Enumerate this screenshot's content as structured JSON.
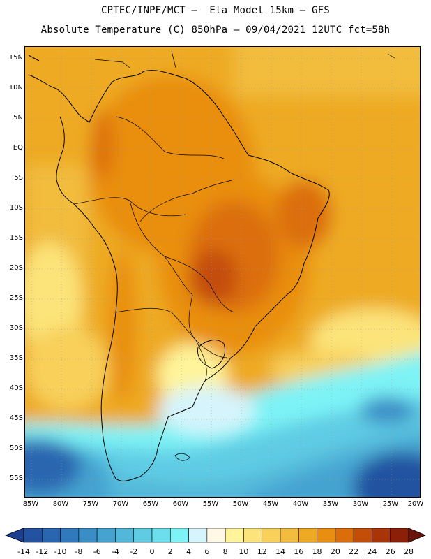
{
  "header": {
    "line1": "CPTEC/INPE/MCT –  Eta Model 15km – GFS",
    "line2": "Absolute Temperature (C) 850hPa – 09/04/2021 12UTC fct=58h"
  },
  "map": {
    "lat_labels": [
      "15N",
      "10N",
      "5N",
      "EQ",
      "5S",
      "10S",
      "15S",
      "20S",
      "25S",
      "30S",
      "35S",
      "40S",
      "45S",
      "50S",
      "55S"
    ],
    "lon_labels": [
      "85W",
      "80W",
      "75W",
      "70W",
      "65W",
      "60W",
      "55W",
      "50W",
      "45W",
      "40W",
      "35W",
      "30W",
      "25W",
      "20W"
    ]
  },
  "colorbar": {
    "ticks": [
      "-14",
      "-12",
      "-10",
      "-8",
      "-6",
      "-4",
      "-2",
      "0",
      "2",
      "4",
      "6",
      "8",
      "10",
      "12",
      "14",
      "16",
      "18",
      "20",
      "22",
      "24",
      "26",
      "28"
    ],
    "colors": [
      "#1b3e8f",
      "#2353a0",
      "#2a66b0",
      "#3179bd",
      "#3a8ec6",
      "#45a3d0",
      "#52b8da",
      "#5fcce4",
      "#6ddfec",
      "#7df3f6",
      "#d5f4fb",
      "#fff8e4",
      "#fff49a",
      "#fce47a",
      "#f8d05a",
      "#f2bc3e",
      "#eeaa22",
      "#e98e10",
      "#dc6e0a",
      "#c44e08",
      "#a93407",
      "#8c1f08",
      "#6b120a"
    ]
  }
}
